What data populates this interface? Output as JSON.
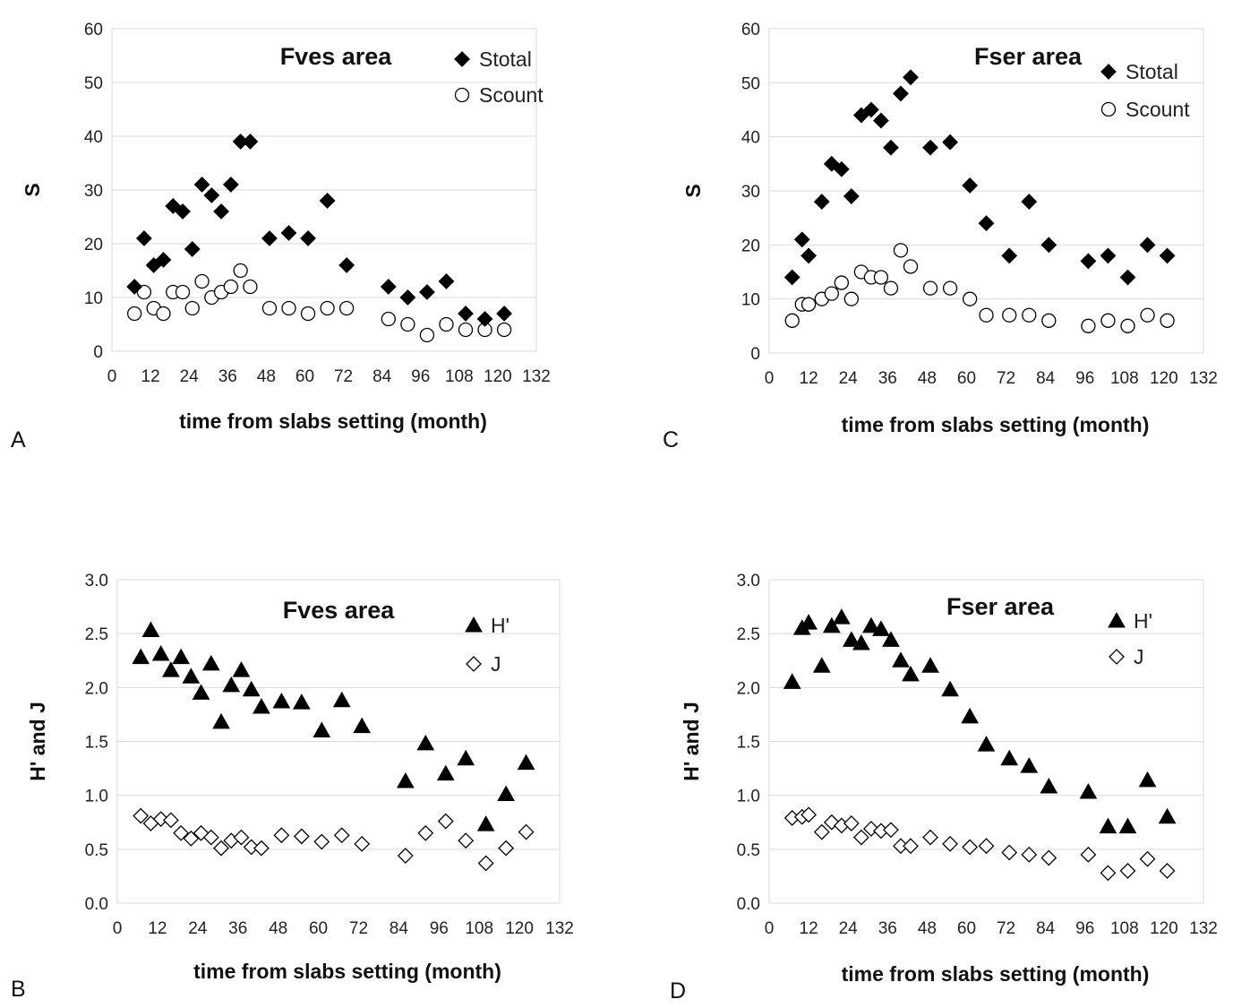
{
  "chart_data": [
    {
      "panel": "A",
      "type": "scatter",
      "title": "Fves area",
      "xlabel": "time from slabs setting (month)",
      "ylabel": "S",
      "xlim": [
        0,
        132
      ],
      "ylim": [
        0,
        60
      ],
      "xticks": [
        "0",
        "12",
        "24",
        "36",
        "48",
        "60",
        "72",
        "84",
        "96",
        "108",
        "120",
        "132"
      ],
      "yticks": [
        "0",
        "10",
        "20",
        "30",
        "40",
        "50",
        "60"
      ],
      "xtick_values": [
        0,
        12,
        24,
        36,
        48,
        60,
        72,
        84,
        96,
        108,
        120,
        132
      ],
      "ytick_values": [
        0,
        10,
        20,
        30,
        40,
        50,
        60
      ],
      "grid": "horizontal",
      "legend": "top-right",
      "series": [
        {
          "name": "Stotal",
          "marker": "diamond-filled",
          "points": [
            [
              7,
              12
            ],
            [
              10,
              21
            ],
            [
              13,
              16
            ],
            [
              16,
              17
            ],
            [
              19,
              27
            ],
            [
              22,
              26
            ],
            [
              25,
              19
            ],
            [
              28,
              31
            ],
            [
              31,
              29
            ],
            [
              34,
              26
            ],
            [
              37,
              31
            ],
            [
              40,
              39
            ],
            [
              43,
              39
            ],
            [
              49,
              21
            ],
            [
              55,
              22
            ],
            [
              61,
              21
            ],
            [
              67,
              28
            ],
            [
              73,
              16
            ],
            [
              86,
              12
            ],
            [
              92,
              10
            ],
            [
              98,
              11
            ],
            [
              104,
              13
            ],
            [
              110,
              7
            ],
            [
              116,
              6
            ],
            [
              122,
              7
            ]
          ]
        },
        {
          "name": "Scount",
          "marker": "circle-open",
          "points": [
            [
              7,
              7
            ],
            [
              10,
              11
            ],
            [
              13,
              8
            ],
            [
              16,
              7
            ],
            [
              19,
              11
            ],
            [
              22,
              11
            ],
            [
              25,
              8
            ],
            [
              28,
              13
            ],
            [
              31,
              10
            ],
            [
              34,
              11
            ],
            [
              37,
              12
            ],
            [
              40,
              15
            ],
            [
              43,
              12
            ],
            [
              49,
              8
            ],
            [
              55,
              8
            ],
            [
              61,
              7
            ],
            [
              67,
              8
            ],
            [
              73,
              8
            ],
            [
              86,
              6
            ],
            [
              92,
              5
            ],
            [
              98,
              3
            ],
            [
              104,
              5
            ],
            [
              110,
              4
            ],
            [
              116,
              4
            ],
            [
              122,
              4
            ]
          ]
        }
      ]
    },
    {
      "panel": "C",
      "type": "scatter",
      "title": "Fser area",
      "xlabel": "time from slabs setting (month)",
      "ylabel": "S",
      "xlim": [
        0,
        132
      ],
      "ylim": [
        0,
        60
      ],
      "xticks": [
        "0",
        "12",
        "24",
        "36",
        "48",
        "60",
        "72",
        "84",
        "96",
        "108",
        "120",
        "132"
      ],
      "yticks": [
        "0",
        "10",
        "20",
        "30",
        "40",
        "50",
        "60"
      ],
      "xtick_values": [
        0,
        12,
        24,
        36,
        48,
        60,
        72,
        84,
        96,
        108,
        120,
        132
      ],
      "ytick_values": [
        0,
        10,
        20,
        30,
        40,
        50,
        60
      ],
      "grid": "horizontal",
      "legend": "top-right",
      "series": [
        {
          "name": "Stotal",
          "marker": "diamond-filled",
          "points": [
            [
              7,
              14
            ],
            [
              10,
              21
            ],
            [
              12,
              18
            ],
            [
              16,
              28
            ],
            [
              19,
              35
            ],
            [
              22,
              34
            ],
            [
              25,
              29
            ],
            [
              28,
              44
            ],
            [
              31,
              45
            ],
            [
              34,
              43
            ],
            [
              37,
              38
            ],
            [
              40,
              48
            ],
            [
              43,
              51
            ],
            [
              49,
              38
            ],
            [
              55,
              39
            ],
            [
              61,
              31
            ],
            [
              66,
              24
            ],
            [
              73,
              18
            ],
            [
              79,
              28
            ],
            [
              85,
              20
            ],
            [
              97,
              17
            ],
            [
              103,
              18
            ],
            [
              109,
              14
            ],
            [
              115,
              20
            ],
            [
              121,
              18
            ]
          ]
        },
        {
          "name": "Scount",
          "marker": "circle-open",
          "points": [
            [
              7,
              6
            ],
            [
              10,
              9
            ],
            [
              12,
              9
            ],
            [
              16,
              10
            ],
            [
              19,
              11
            ],
            [
              22,
              13
            ],
            [
              25,
              10
            ],
            [
              28,
              15
            ],
            [
              31,
              14
            ],
            [
              34,
              14
            ],
            [
              37,
              12
            ],
            [
              40,
              19
            ],
            [
              43,
              16
            ],
            [
              49,
              12
            ],
            [
              55,
              12
            ],
            [
              61,
              10
            ],
            [
              66,
              7
            ],
            [
              73,
              7
            ],
            [
              79,
              7
            ],
            [
              85,
              6
            ],
            [
              97,
              5
            ],
            [
              103,
              6
            ],
            [
              109,
              5
            ],
            [
              115,
              7
            ],
            [
              121,
              6
            ]
          ]
        }
      ]
    },
    {
      "panel": "B",
      "type": "scatter",
      "title": "Fves area",
      "xlabel": "time from slabs setting (month)",
      "ylabel": "H' and J",
      "xlim": [
        0,
        132
      ],
      "ylim": [
        0,
        3
      ],
      "xticks": [
        "0",
        "12",
        "24",
        "36",
        "48",
        "60",
        "72",
        "84",
        "96",
        "108",
        "120",
        "132"
      ],
      "yticks": [
        "0.0",
        "0.5",
        "1.0",
        "1.5",
        "2.0",
        "2.5",
        "3.0"
      ],
      "xtick_values": [
        0,
        12,
        24,
        36,
        48,
        60,
        72,
        84,
        96,
        108,
        120,
        132
      ],
      "ytick_values": [
        0,
        0.5,
        1,
        1.5,
        2,
        2.5,
        3
      ],
      "grid": "horizontal",
      "legend": "top-right",
      "series": [
        {
          "name": "H'",
          "marker": "triangle-filled",
          "points": [
            [
              7,
              2.28
            ],
            [
              10,
              2.53
            ],
            [
              13,
              2.31
            ],
            [
              16,
              2.16
            ],
            [
              19,
              2.28
            ],
            [
              22,
              2.1
            ],
            [
              25,
              1.95
            ],
            [
              28,
              2.22
            ],
            [
              31,
              1.68
            ],
            [
              34,
              2.02
            ],
            [
              37,
              2.16
            ],
            [
              40,
              1.98
            ],
            [
              43,
              1.82
            ],
            [
              49,
              1.87
            ],
            [
              55,
              1.86
            ],
            [
              61,
              1.6
            ],
            [
              67,
              1.88
            ],
            [
              73,
              1.64
            ],
            [
              86,
              1.13
            ],
            [
              92,
              1.48
            ],
            [
              98,
              1.2
            ],
            [
              104,
              1.34
            ],
            [
              110,
              0.73
            ],
            [
              116,
              1.01
            ],
            [
              122,
              1.3
            ]
          ]
        },
        {
          "name": "J",
          "marker": "diamond-open",
          "points": [
            [
              7,
              0.81
            ],
            [
              10,
              0.74
            ],
            [
              13,
              0.78
            ],
            [
              16,
              0.77
            ],
            [
              19,
              0.65
            ],
            [
              22,
              0.6
            ],
            [
              25,
              0.65
            ],
            [
              28,
              0.61
            ],
            [
              31,
              0.51
            ],
            [
              34,
              0.58
            ],
            [
              37,
              0.61
            ],
            [
              40,
              0.52
            ],
            [
              43,
              0.51
            ],
            [
              49,
              0.63
            ],
            [
              55,
              0.62
            ],
            [
              61,
              0.57
            ],
            [
              67,
              0.63
            ],
            [
              73,
              0.55
            ],
            [
              86,
              0.44
            ],
            [
              92,
              0.65
            ],
            [
              98,
              0.76
            ],
            [
              104,
              0.58
            ],
            [
              110,
              0.37
            ],
            [
              116,
              0.51
            ],
            [
              122,
              0.66
            ]
          ]
        }
      ]
    },
    {
      "panel": "D",
      "type": "scatter",
      "title": "Fser area",
      "xlabel": "time from slabs setting (month)",
      "ylabel": "H' and J",
      "xlim": [
        0,
        132
      ],
      "ylim": [
        0,
        3
      ],
      "xticks": [
        "0",
        "12",
        "24",
        "36",
        "48",
        "60",
        "72",
        "84",
        "96",
        "108",
        "120",
        "132"
      ],
      "yticks": [
        "0.0",
        "0.5",
        "1.0",
        "1.5",
        "2.0",
        "2.5",
        "3.0"
      ],
      "xtick_values": [
        0,
        12,
        24,
        36,
        48,
        60,
        72,
        84,
        96,
        108,
        120,
        132
      ],
      "ytick_values": [
        0,
        0.5,
        1,
        1.5,
        2,
        2.5,
        3
      ],
      "grid": "horizontal",
      "legend": "top-right",
      "series": [
        {
          "name": "H'",
          "marker": "triangle-filled",
          "points": [
            [
              7,
              2.05
            ],
            [
              10,
              2.55
            ],
            [
              12,
              2.6
            ],
            [
              16,
              2.2
            ],
            [
              19,
              2.57
            ],
            [
              22,
              2.65
            ],
            [
              25,
              2.44
            ],
            [
              28,
              2.41
            ],
            [
              31,
              2.57
            ],
            [
              34,
              2.54
            ],
            [
              37,
              2.44
            ],
            [
              40,
              2.25
            ],
            [
              43,
              2.12
            ],
            [
              49,
              2.2
            ],
            [
              55,
              1.98
            ],
            [
              61,
              1.73
            ],
            [
              66,
              1.47
            ],
            [
              73,
              1.34
            ],
            [
              79,
              1.27
            ],
            [
              85,
              1.08
            ],
            [
              97,
              1.03
            ],
            [
              103,
              0.71
            ],
            [
              109,
              0.71
            ],
            [
              115,
              1.14
            ],
            [
              121,
              0.8
            ]
          ]
        },
        {
          "name": "J",
          "marker": "diamond-open",
          "points": [
            [
              7,
              0.79
            ],
            [
              10,
              0.8
            ],
            [
              12,
              0.82
            ],
            [
              16,
              0.66
            ],
            [
              19,
              0.75
            ],
            [
              22,
              0.72
            ],
            [
              25,
              0.74
            ],
            [
              28,
              0.61
            ],
            [
              31,
              0.69
            ],
            [
              34,
              0.67
            ],
            [
              37,
              0.68
            ],
            [
              40,
              0.53
            ],
            [
              43,
              0.53
            ],
            [
              49,
              0.61
            ],
            [
              55,
              0.55
            ],
            [
              61,
              0.52
            ],
            [
              66,
              0.53
            ],
            [
              73,
              0.47
            ],
            [
              79,
              0.45
            ],
            [
              85,
              0.42
            ],
            [
              97,
              0.45
            ],
            [
              103,
              0.28
            ],
            [
              109,
              0.3
            ],
            [
              115,
              0.41
            ],
            [
              121,
              0.3
            ]
          ]
        }
      ]
    }
  ]
}
